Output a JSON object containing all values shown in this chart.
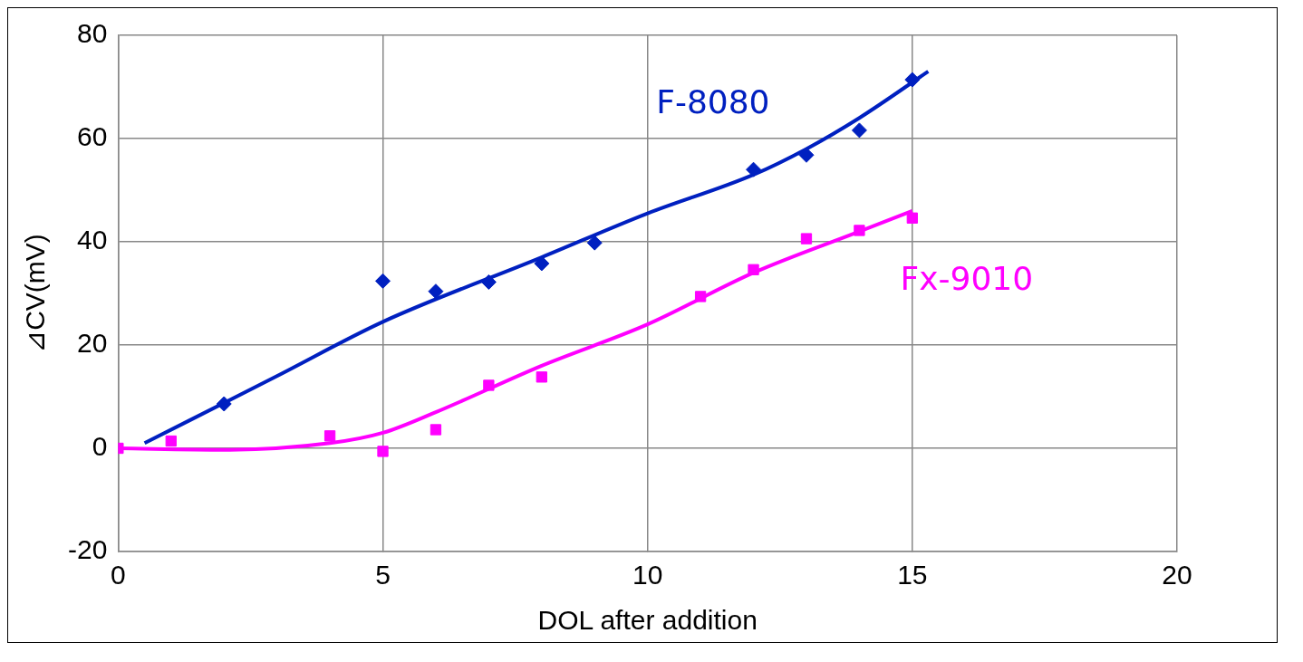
{
  "chart_data": {
    "type": "scatter",
    "xlabel": "DOL after addition",
    "ylabel": "⊿CV(mV)",
    "xlim": [
      0,
      20
    ],
    "xticks": [
      0,
      5,
      10,
      15,
      20
    ],
    "ylim": [
      -20,
      80
    ],
    "yticks": [
      -20,
      0,
      20,
      40,
      60,
      80
    ],
    "grid": true,
    "legend": false,
    "series": [
      {
        "name": "F-8080",
        "marker": "diamond",
        "color": "#0020c0",
        "x": [
          2,
          5,
          6,
          7,
          8,
          9,
          12,
          13,
          14,
          15
        ],
        "values": [
          8.6,
          32.4,
          30.4,
          32.2,
          35.8,
          39.8,
          54,
          56.8,
          61.6,
          71.4
        ]
      },
      {
        "name": "Fx-9010",
        "marker": "square",
        "color": "#ff00ff",
        "x": [
          0,
          1,
          4,
          5,
          6,
          7,
          8,
          11,
          12,
          13,
          14,
          15
        ],
        "values": [
          0,
          1.4,
          2.4,
          -0.6,
          3.6,
          12.2,
          13.8,
          29.4,
          34.6,
          40.6,
          42.2,
          44.6
        ]
      },
      {
        "type": "line",
        "marker": "none",
        "color": "#0020c0",
        "x": [
          0.5,
          3,
          5,
          8,
          10,
          12,
          13,
          14,
          15.3
        ],
        "values": [
          1,
          14,
          24.5,
          37,
          45.5,
          53,
          58,
          64,
          73
        ]
      },
      {
        "type": "line",
        "marker": "none",
        "color": "#ff00ff",
        "x": [
          0,
          2,
          4,
          5,
          6,
          8,
          10,
          12,
          14,
          15
        ],
        "values": [
          0,
          -0.3,
          1,
          3,
          7,
          16,
          24,
          34,
          42,
          46
        ]
      }
    ]
  }
}
